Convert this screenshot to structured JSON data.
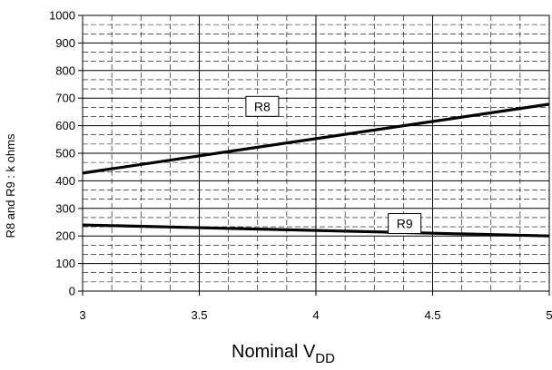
{
  "chart_data": {
    "type": "line",
    "xlabel_main": "Nominal V",
    "xlabel_sub": "DD",
    "ylabel": "R8 and R9 : k ohms",
    "xlim": [
      3,
      5
    ],
    "ylim": [
      0,
      1000
    ],
    "x_ticks": [
      "3",
      "3.5",
      "4",
      "4.5",
      "5"
    ],
    "y_ticks": [
      "0",
      "100",
      "200",
      "300",
      "400",
      "500",
      "600",
      "700",
      "800",
      "900",
      "1000"
    ],
    "grid": true,
    "legend": "none",
    "series": [
      {
        "name": "R8",
        "x": [
          3,
          5
        ],
        "y": [
          428,
          678
        ],
        "color": "#000000"
      },
      {
        "name": "R9",
        "x": [
          3,
          5
        ],
        "y": [
          240,
          200
        ],
        "color": "#000000"
      }
    ],
    "annotations": [
      {
        "text": "R8",
        "series": "R8",
        "x": 3.77,
        "y": 670
      },
      {
        "text": "R9",
        "series": "R9",
        "x": 4.38,
        "y": 245
      }
    ]
  }
}
